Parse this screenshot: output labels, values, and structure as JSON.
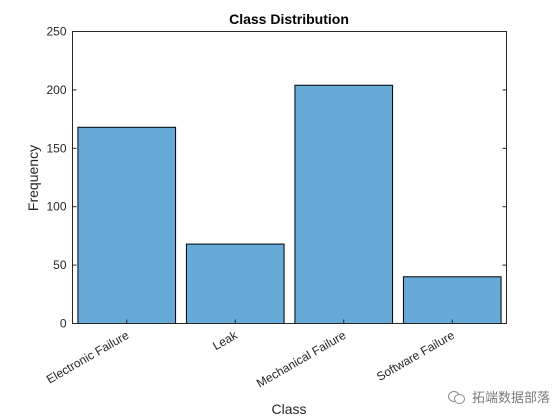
{
  "chart_data": {
    "type": "bar",
    "title": "Class Distribution",
    "xlabel": "Class",
    "ylabel": "Frequency",
    "categories": [
      "Electronic Failure",
      "Leak",
      "Mechanical Failure",
      "Software Failure"
    ],
    "values": [
      168,
      68,
      204,
      40
    ],
    "ylim": [
      0,
      250
    ],
    "yticks": [
      0,
      50,
      100,
      150,
      200,
      250
    ],
    "bar_color": "#66aad8",
    "edge_color": "#000000",
    "grid": false,
    "legend": "none"
  },
  "watermark": {
    "icon": "wechat-icon",
    "text": "拓端数据部落"
  }
}
